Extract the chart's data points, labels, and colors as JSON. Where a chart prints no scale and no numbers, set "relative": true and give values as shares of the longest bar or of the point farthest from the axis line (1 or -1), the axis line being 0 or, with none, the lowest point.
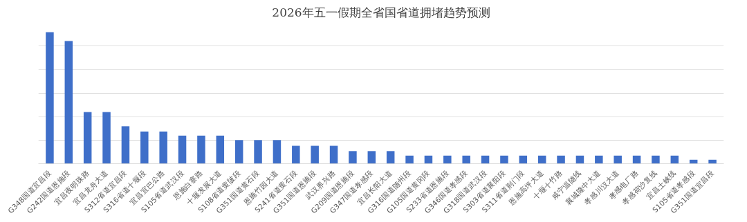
{
  "chart_data": {
    "type": "bar",
    "title": "2026年五一假期全省国省道拥堵趋势预测",
    "relative": true,
    "grid": "y",
    "color": "#3f6fc9",
    "categories": [
      "G348国道宜昌段",
      "G242国道恩施段",
      "宜昌夜明珠路",
      "宜昌龙舟大道",
      "S312省道宜昌段",
      "S316省道十堰段",
      "宜昌宜巴公路",
      "S105省道武汉段",
      "恩施白寨路",
      "十堰发展大道",
      "S108省道黄陂段",
      "G351国道黄石段",
      "恩施竹园大道",
      "S241省道黄石段",
      "G351国道恩施段",
      "武汉界兴路",
      "G209国道恩施段",
      "G347国道孝感段",
      "宜昌长阳大道",
      "G316国道随州段",
      "G105国道黄冈段",
      "S233省道恩施段",
      "G346国道孝感段",
      "G318国道武汉段",
      "S303省道襄阳段",
      "S311省道荆门段",
      "恩施高坪大道",
      "十堰十竹路",
      "咸宁温随线",
      "襄城隆中大道",
      "孝感川汉大道",
      "孝感电厂路",
      "孝感荷沙复线",
      "宜昌土峡线",
      "S105省道孝感段",
      "G351国道宜昌段"
    ],
    "values": [
      1,
      0.934,
      0.393,
      0.393,
      0.284,
      0.245,
      0.245,
      0.214,
      0.214,
      0.214,
      0.179,
      0.179,
      0.179,
      0.136,
      0.136,
      0.136,
      0.096,
      0.096,
      0.096,
      0.061,
      0.061,
      0.061,
      0.061,
      0.061,
      0.061,
      0.061,
      0.061,
      0.061,
      0.061,
      0.061,
      0.061,
      0.061,
      0.061,
      0.061,
      0.03,
      0.03
    ]
  }
}
